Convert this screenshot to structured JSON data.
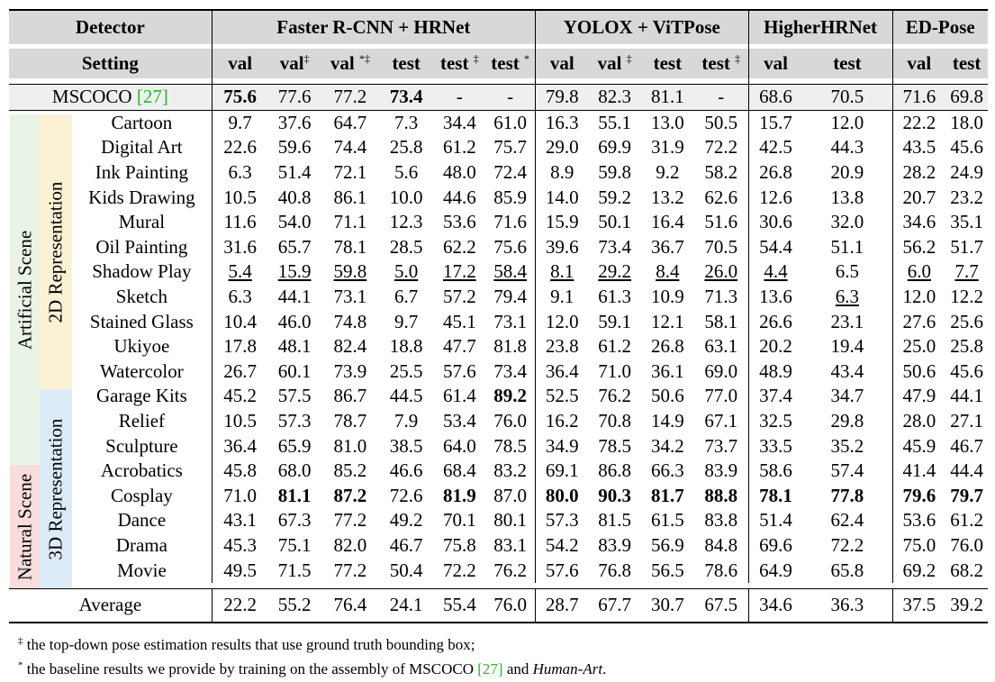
{
  "table": {
    "detectors": [
      {
        "label": "Faster R-CNN + HRNet"
      },
      {
        "label": "YOLOX + ViTPose"
      },
      {
        "label": "HigherHRNet"
      },
      {
        "label": "ED-Pose"
      }
    ],
    "detector_header": "Detector",
    "setting_header": "Setting",
    "settings": [
      {
        "text": "val",
        "sup": ""
      },
      {
        "text": "val",
        "sup": "‡"
      },
      {
        "text": "val ",
        "sup": "*‡"
      },
      {
        "text": "test",
        "sup": ""
      },
      {
        "text": "test ",
        "sup": "‡"
      },
      {
        "text": "test ",
        "sup": "*"
      },
      {
        "text": "val",
        "sup": ""
      },
      {
        "text": "val ",
        "sup": "‡"
      },
      {
        "text": "test",
        "sup": ""
      },
      {
        "text": "test ",
        "sup": "‡"
      },
      {
        "text": "val",
        "sup": ""
      },
      {
        "text": "test",
        "sup": ""
      },
      {
        "text": "val",
        "sup": ""
      },
      {
        "text": "test",
        "sup": ""
      }
    ],
    "mscoco": {
      "name": "MSCOCO ",
      "cite": "[27]",
      "values": [
        "75.6",
        "77.6",
        "77.2",
        "73.4",
        "-",
        "-",
        "79.8",
        "82.3",
        "81.1",
        "-",
        "68.6",
        "70.5",
        "71.6",
        "69.8"
      ],
      "bold": [
        0,
        3
      ]
    },
    "group_labels": {
      "artificial": "Artificial Scene",
      "natural": "Natural Scene",
      "rep2d": "2D Representation",
      "rep3d": "3D Representation"
    },
    "rows": [
      {
        "name": "Cartoon",
        "values": [
          "9.7",
          "37.6",
          "64.7",
          "7.3",
          "34.4",
          "61.0",
          "16.3",
          "55.1",
          "13.0",
          "50.5",
          "15.7",
          "12.0",
          "22.2",
          "18.0"
        ]
      },
      {
        "name": "Digital Art",
        "values": [
          "22.6",
          "59.6",
          "74.4",
          "25.8",
          "61.2",
          "75.7",
          "29.0",
          "69.9",
          "31.9",
          "72.2",
          "42.5",
          "44.3",
          "43.5",
          "45.6"
        ]
      },
      {
        "name": "Ink Painting",
        "values": [
          "6.3",
          "51.4",
          "72.1",
          "5.6",
          "48.0",
          "72.4",
          "8.9",
          "59.8",
          "9.2",
          "58.2",
          "26.8",
          "20.9",
          "28.2",
          "24.9"
        ]
      },
      {
        "name": "Kids Drawing",
        "values": [
          "10.5",
          "40.8",
          "86.1",
          "10.0",
          "44.6",
          "85.9",
          "14.0",
          "59.2",
          "13.2",
          "62.6",
          "12.6",
          "13.8",
          "20.7",
          "23.2"
        ]
      },
      {
        "name": "Mural",
        "values": [
          "11.6",
          "54.0",
          "71.1",
          "12.3",
          "53.6",
          "71.6",
          "15.9",
          "50.1",
          "16.4",
          "51.6",
          "30.6",
          "32.0",
          "34.6",
          "35.1"
        ]
      },
      {
        "name": "Oil Painting",
        "values": [
          "31.6",
          "65.7",
          "78.1",
          "28.5",
          "62.2",
          "75.6",
          "39.6",
          "73.4",
          "36.7",
          "70.5",
          "54.4",
          "51.1",
          "56.2",
          "51.7"
        ]
      },
      {
        "name": "Shadow Play",
        "values": [
          "5.4",
          "15.9",
          "59.8",
          "5.0",
          "17.2",
          "58.4",
          "8.1",
          "29.2",
          "8.4",
          "26.0",
          "4.4",
          "6.5",
          "6.0",
          "7.7"
        ],
        "underline": [
          0,
          1,
          2,
          3,
          4,
          5,
          6,
          7,
          8,
          9,
          10,
          12,
          13
        ]
      },
      {
        "name": "Sketch",
        "values": [
          "6.3",
          "44.1",
          "73.1",
          "6.7",
          "57.2",
          "79.4",
          "9.1",
          "61.3",
          "10.9",
          "71.3",
          "13.6",
          "6.3",
          "12.0",
          "12.2"
        ],
        "underline": [
          11
        ]
      },
      {
        "name": "Stained Glass",
        "values": [
          "10.4",
          "46.0",
          "74.8",
          "9.7",
          "45.1",
          "73.1",
          "12.0",
          "59.1",
          "12.1",
          "58.1",
          "26.6",
          "23.1",
          "27.6",
          "25.6"
        ]
      },
      {
        "name": "Ukiyoe",
        "values": [
          "17.8",
          "48.1",
          "82.4",
          "18.8",
          "47.7",
          "81.8",
          "23.8",
          "61.2",
          "26.8",
          "63.1",
          "20.2",
          "19.4",
          "25.0",
          "25.8"
        ]
      },
      {
        "name": "Watercolor",
        "values": [
          "26.7",
          "60.1",
          "73.9",
          "25.5",
          "57.6",
          "73.4",
          "36.4",
          "71.0",
          "36.1",
          "69.0",
          "48.9",
          "43.4",
          "50.6",
          "45.6"
        ]
      },
      {
        "name": "Garage Kits",
        "values": [
          "45.2",
          "57.5",
          "86.7",
          "44.5",
          "61.4",
          "89.2",
          "52.5",
          "76.2",
          "50.6",
          "77.0",
          "37.4",
          "34.7",
          "47.9",
          "44.1"
        ],
        "bold": [
          5
        ]
      },
      {
        "name": "Relief",
        "values": [
          "10.5",
          "57.3",
          "78.7",
          "7.9",
          "53.4",
          "76.0",
          "16.2",
          "70.8",
          "14.9",
          "67.1",
          "32.5",
          "29.8",
          "28.0",
          "27.1"
        ]
      },
      {
        "name": "Sculpture",
        "values": [
          "36.4",
          "65.9",
          "81.0",
          "38.5",
          "64.0",
          "78.5",
          "34.9",
          "78.5",
          "34.2",
          "73.7",
          "33.5",
          "35.2",
          "45.9",
          "46.7"
        ]
      },
      {
        "name": "Acrobatics",
        "values": [
          "45.8",
          "68.0",
          "85.2",
          "46.6",
          "68.4",
          "83.2",
          "69.1",
          "86.8",
          "66.3",
          "83.9",
          "58.6",
          "57.4",
          "41.4",
          "44.4"
        ]
      },
      {
        "name": "Cosplay",
        "values": [
          "71.0",
          "81.1",
          "87.2",
          "72.6",
          "81.9",
          "87.0",
          "80.0",
          "90.3",
          "81.7",
          "88.8",
          "78.1",
          "77.8",
          "79.6",
          "79.7"
        ],
        "bold": [
          1,
          2,
          4,
          6,
          7,
          8,
          9,
          10,
          11,
          12,
          13
        ]
      },
      {
        "name": "Dance",
        "values": [
          "43.1",
          "67.3",
          "77.2",
          "49.2",
          "70.1",
          "80.1",
          "57.3",
          "81.5",
          "61.5",
          "83.8",
          "51.4",
          "62.4",
          "53.6",
          "61.2"
        ]
      },
      {
        "name": "Drama",
        "values": [
          "45.3",
          "75.1",
          "82.0",
          "46.7",
          "75.8",
          "83.1",
          "54.2",
          "83.9",
          "56.9",
          "84.8",
          "69.6",
          "72.2",
          "75.0",
          "76.0"
        ]
      },
      {
        "name": "Movie",
        "values": [
          "49.5",
          "71.5",
          "77.2",
          "50.4",
          "72.2",
          "76.2",
          "57.6",
          "76.8",
          "56.5",
          "78.6",
          "64.9",
          "65.8",
          "69.2",
          "68.2"
        ]
      }
    ],
    "average": {
      "name": "Average",
      "values": [
        "22.2",
        "55.2",
        "76.4",
        "24.1",
        "55.4",
        "76.0",
        "28.7",
        "67.7",
        "30.7",
        "67.5",
        "34.6",
        "36.3",
        "37.5",
        "39.2"
      ]
    }
  },
  "footnotes": [
    {
      "mark": "‡",
      "pre": " the top-down pose estimation results that use ground truth bounding box;",
      "cite": "",
      "mid": "",
      "em": "",
      "post": ""
    },
    {
      "mark": "*",
      "pre": " the baseline results we provide by training on the assembly of MSCOCO ",
      "cite": "[27]",
      "mid": " and ",
      "em": "Human-Art",
      "post": "."
    }
  ],
  "colors": {
    "header_bg": "#d8d8d8",
    "artificial_bg": "#e9f3e6",
    "natural_bg": "#f9dcdc",
    "rep2d_bg": "#fbf2d6",
    "rep3d_bg": "#ddebf8",
    "cite": "#2db52d"
  }
}
